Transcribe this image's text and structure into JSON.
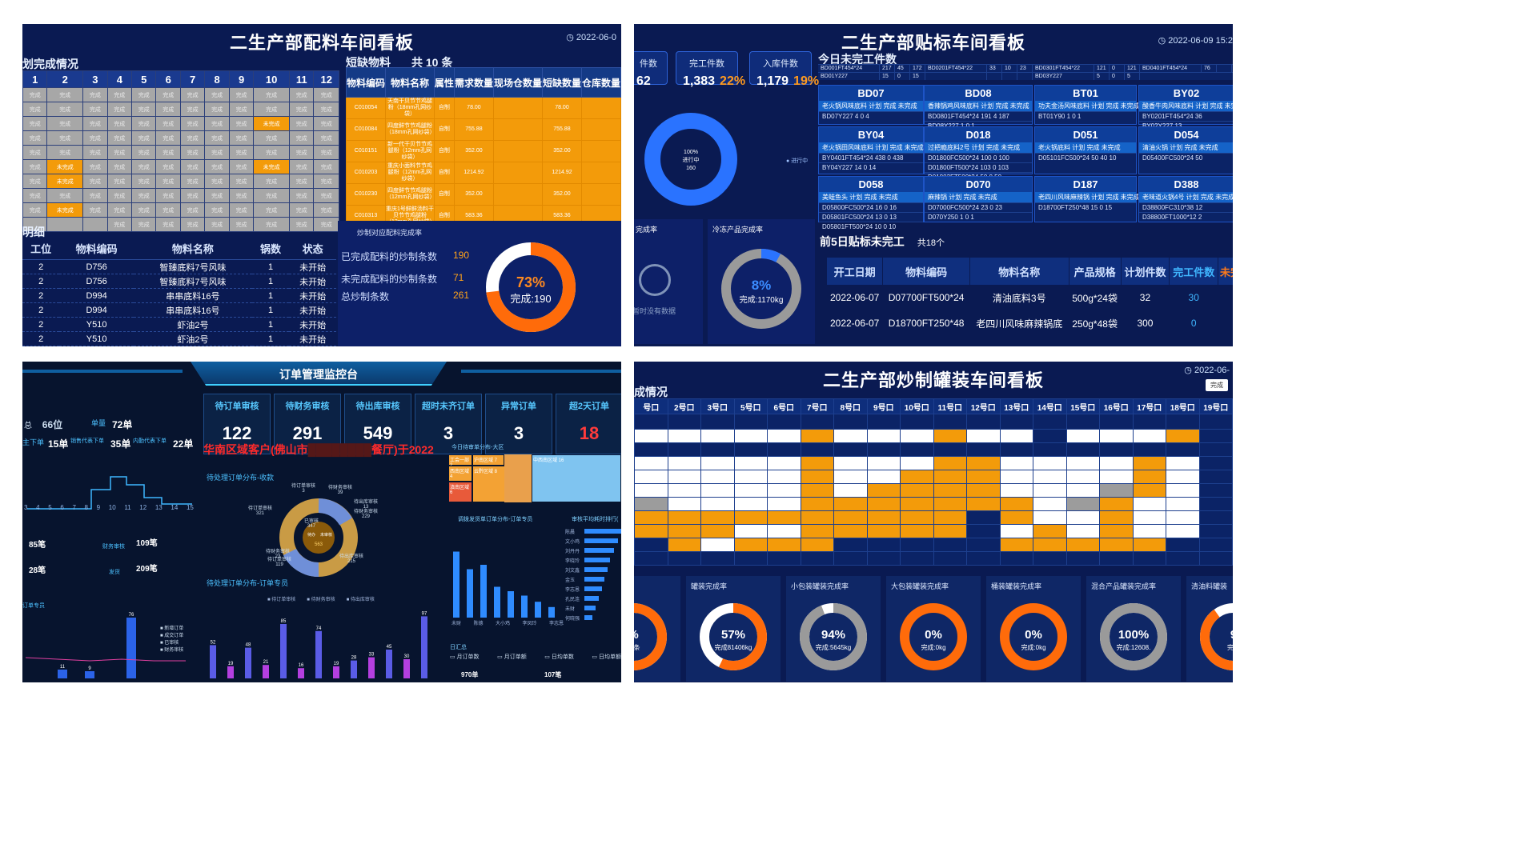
{
  "p1": {
    "title": "二生产部配料车间看板",
    "date": "2022-06-0",
    "plan_title": "划完成情况",
    "plan_cols": [
      "1",
      "2",
      "3",
      "4",
      "5",
      "6",
      "7",
      "8",
      "9",
      "10",
      "11",
      "12"
    ],
    "cell_text": "完成",
    "cell_text_on": "未完成",
    "short_title": "短缺物料",
    "short_count": "共 10 条",
    "short_cols": [
      "物料编码",
      "物料名称",
      "属性",
      "需求数量",
      "现场仓数量",
      "短缺数量",
      "仓库数量"
    ],
    "short_rows": [
      [
        "C010054",
        "天南干贝节节鸡腿粉（18mm孔网纱袋）",
        "自制",
        "78.00",
        "",
        "78.00",
        ""
      ],
      [
        "C010084",
        "四度鲜节节鸡腿粉（18mm孔网纱袋）",
        "自制",
        "755.88",
        "",
        "755.88",
        ""
      ],
      [
        "C010151",
        "新一代干贝节节鸡腿粉（12mm孔网纱袋）",
        "自制",
        "352.00",
        "",
        "352.00",
        ""
      ],
      [
        "C010203",
        "重庆小面料节节鸡腿粉（12mm孔网纱袋）",
        "自制",
        "1214.92",
        "",
        "1214.92",
        ""
      ],
      [
        "C010230",
        "四度鲜节节鸡腿粉（12mm孔网纱袋）",
        "自制",
        "352.00",
        "",
        "352.00",
        ""
      ],
      [
        "C010313",
        "重庆1号鲜鲜汤料干贝节节鸡腿粉（12mm孔网纱袋）",
        "自制",
        "583.36",
        "",
        "583.36",
        ""
      ],
      [
        "C010382",
        "重庆1号鲜鲜汤料干贝节节鸡腿粉（12mm孔网纱袋）",
        "自制",
        "292.20",
        "",
        "292.20",
        ""
      ]
    ],
    "detail_title": "明细",
    "detail_cols": [
      "工位",
      "物料编码",
      "物料名称",
      "锅数",
      "状态"
    ],
    "detail_rows": [
      [
        "2",
        "D756",
        "智臻底料7号风味",
        "1",
        "未开始"
      ],
      [
        "2",
        "D756",
        "智臻底料7号风味",
        "1",
        "未开始"
      ],
      [
        "2",
        "D994",
        "串串底料16号",
        "1",
        "未开始"
      ],
      [
        "2",
        "D994",
        "串串底料16号",
        "1",
        "未开始"
      ],
      [
        "2",
        "Y510",
        "虾油2号",
        "1",
        "未开始"
      ],
      [
        "2",
        "Y510",
        "虾油2号",
        "1",
        "未开始"
      ],
      [
        "2",
        "Y510",
        "虾油2号",
        "1",
        "未开始"
      ],
      [
        "2",
        "Y510",
        "虾油2号",
        "1",
        "未开始"
      ]
    ],
    "rate_title": "炒制对应配料完成率",
    "stat1_label": "已完成配料的炒制条数",
    "stat1": "190",
    "stat2_label": "未完成配料的炒制条数",
    "stat2": "71",
    "stat3_label": "总炒制条数",
    "stat3": "261",
    "ring_pct": "73%",
    "ring_label": "完成:190",
    "ring_value": 0.73
  },
  "p2": {
    "title": "二生产部贴标车间看板",
    "date": "2022-06-09 15:2",
    "k0_label": "件数",
    "k0_value": "62",
    "k1_label": "完工件数",
    "k1_value": "1,383",
    "k1_pct": "22%",
    "k2_label": "入库件数",
    "k2_value": "1,179",
    "k2_pct": "19%",
    "donut_line1": "100%",
    "donut_line2": "进行中",
    "donut_line3": "160",
    "legend": "进行中",
    "unf_title": "今日未完工件数",
    "top_row": [
      [
        "BD001FT454*24",
        "217",
        "45",
        "172"
      ],
      [
        "BD0201FT454*22",
        "33",
        "10",
        "23"
      ],
      [
        "BD0301FT454*22",
        "121",
        "0",
        "121"
      ],
      [
        "BD0401FT454*24",
        "76",
        ""
      ]
    ],
    "top_row2": [
      [
        "BD01Y227",
        "15",
        "0",
        "15"
      ],
      [
        "",
        "",
        "",
        ""
      ],
      [
        "BD03Y227",
        "5",
        "0",
        "5"
      ]
    ],
    "blocks": [
      {
        "name": "BD07",
        "h": "老火锅风味底料",
        "r1": "BD07Y227  4  0  4"
      },
      {
        "name": "BD08",
        "h": "香辣锅鸡风味底料",
        "r1": "BD0801FT454*24 191 4 187",
        "r2": "BD08Y227  1  0  1"
      },
      {
        "name": "BT01",
        "h": "功夫金汤风味底料",
        "r1": "BT01Y90  1  0  1"
      },
      {
        "name": "BY02",
        "h": "酸香牛肉风味底料",
        "r1": "BY0201FT454*24  36",
        "r2": "BY02Y227  13"
      },
      {
        "name": "BY04",
        "h": "老火锅田风味底料",
        "r1": "BY0401FT454*24 438 0 438",
        "r2": "BY04Y227  14  0  14"
      },
      {
        "name": "D018",
        "h": "过把瘾底料2号",
        "r1": "D01800FC500*24 100 0 100",
        "r2": "D01800FT500*24 103 0 103",
        "r3": "D01803FT500*24 50 0 50"
      },
      {
        "name": "D051",
        "h": "老火锅底料",
        "r1": "D05101FC500*24 50 40 10"
      },
      {
        "name": "D054",
        "h": "清油火锅",
        "r1": "D05400FC500*24  50"
      },
      {
        "name": "D058",
        "h": "美蛙鱼头",
        "r1": "D05800FC500*24 16 0 16",
        "r2": "D05801FC500*24 13 0 13",
        "r3": "D05801FT500*24 10 0 10"
      },
      {
        "name": "D070",
        "h": "麻辣锅",
        "r1": "D07000FC500*24 23 0 23",
        "r2": "D070Y250  1  0  1"
      },
      {
        "name": "D187",
        "h": "老四川风味麻辣锅",
        "r1": "D18700FT250*48 15 0 15"
      },
      {
        "name": "D388",
        "h": "老味道火锅4号",
        "r1": "D38800FC310*38  12",
        "r2": "D38800FT1000*12  2"
      }
    ],
    "g1": "完成率",
    "g2": "冷冻产品完成率",
    "nodata": "暂时没有数据",
    "g2_pct": "8%",
    "g2_label": "完成:1170kg",
    "g2_value": 0.08,
    "wt_title": "前5日贴标未完工",
    "wt_count": "共18个",
    "wt_cols": [
      "开工日期",
      "物料编码",
      "物料名称",
      "产品规格",
      "计划件数",
      "完工件数",
      "未完"
    ],
    "wt_rows": [
      [
        "2022-06-07",
        "D07700FT500*24",
        "清油底料3号",
        "500g*24袋",
        "32",
        "30",
        ""
      ],
      [
        "2022-06-07",
        "D18700FT250*48",
        "老四川风味麻辣锅底",
        "250g*48袋",
        "300",
        "0",
        ""
      ]
    ]
  },
  "p3": {
    "title": "订单管理监控台",
    "kpis": [
      {
        "label": "待订单审核",
        "value": "122"
      },
      {
        "label": "待财务审核",
        "value": "291"
      },
      {
        "label": "待出库审核",
        "value": "549"
      },
      {
        "label": "超时未齐订单",
        "value": "3"
      },
      {
        "label": "异常订单",
        "value": "3"
      },
      {
        "label": "超2天订单",
        "value": "18"
      }
    ],
    "left_a": "66位",
    "left_a_l": "单量",
    "left_b": "72单",
    "left_c": "15单",
    "left_c_l": "主下单",
    "left_d": "35单",
    "left_d_l": "销售代表下单",
    "left_e": "22单",
    "left_e_l": "内勤代表下单",
    "ticker": "华南区域客户(佛山市",
    "ticker2": "餐厅)于2022",
    "line_xaxis": [
      "3",
      "4",
      "5",
      "6",
      "7",
      "8",
      "9",
      "10",
      "11",
      "12",
      "13",
      "14",
      "15"
    ],
    "s2a": "85笔",
    "s2b": "109笔",
    "s2b_l": "财务审核",
    "s2c": "28笔",
    "s2d": "209笔",
    "s2d_l": "发货",
    "pie_title": "待处理订单分布-收款",
    "pie_labels": [
      {
        "t": "待订单审核",
        "v": "3"
      },
      {
        "t": "待财务审核",
        "v": "39"
      },
      {
        "t": "待出库审核",
        "v": "13"
      },
      {
        "t": "待财务审核",
        "v": "229"
      },
      {
        "t": "待订单审核",
        "v": "321"
      },
      {
        "t": "已审核",
        "v": "347"
      },
      {
        "t": "待财务审核",
        "v": "23"
      },
      {
        "t": "待订单审核",
        "v": "119"
      },
      {
        "t": "待出库审核",
        "v": "215"
      }
    ],
    "pie_center1": "待办",
    "pie_center2": "未审核",
    "pie_center3": "563",
    "bar_title": "待处理订单分布-订单专员",
    "bar_legend": [
      "待订单审核",
      "待财务审核",
      "待出库审核"
    ],
    "bars": [
      52,
      19,
      48,
      21,
      85,
      16,
      74,
      19,
      28,
      33,
      45,
      30,
      97
    ],
    "bars_hi": [
      "52",
      "19",
      "48",
      "21",
      "85",
      "16",
      "74",
      "19",
      "28",
      "33",
      "45",
      "30",
      "97"
    ],
    "tree_title": "今日待审单分布-大区",
    "tree": [
      {
        "t": "工会一部 2",
        "c": "#f3a234"
      },
      {
        "t": "沪南区域 7",
        "c": "#f3a234"
      },
      {
        "t": "中西南区域 16",
        "c": "#7fc4f0"
      },
      {
        "t": "西南区域 4",
        "c": "#f3a234"
      },
      {
        "t": "滇南区域 6",
        "c": "#e85a3a"
      },
      {
        "t": "云黔区域 8",
        "c": "#f3a234"
      }
    ],
    "vbar_title": "调拨发货单订单分布-订单专员",
    "vbars": [
      0.75,
      0.55,
      0.6,
      0.35,
      0.3,
      0.25,
      0.18,
      0.12
    ],
    "vbar_x": [
      "未财",
      "陈德",
      "大小鸡",
      "李凤玲",
      "李志恩"
    ],
    "hbar_title": "审核平均耗时排行(",
    "hbar_names": [
      "陈晨",
      "文小鸡",
      "刘丹丹",
      "李晓玲",
      "刘文鑫",
      "金玉",
      "李志恩",
      "孔民连",
      "未财",
      "何晓强"
    ],
    "hbar_vals": [
      1,
      0.92,
      0.8,
      0.7,
      0.62,
      0.55,
      0.48,
      0.4,
      0.3,
      0.22
    ],
    "day_title": "日汇总",
    "day_items": [
      "月订单数",
      "月订单额",
      "日均单数",
      "日均单额"
    ],
    "day_a": "970单",
    "day_b": "107笔",
    "bot_title": "订单专员",
    "bot_legend": [
      "新增订单",
      "成交订单",
      "已审核",
      "财务审核"
    ],
    "bot_bars": [
      11,
      9,
      76
    ]
  },
  "p4": {
    "title": "二生产部炒制罐装车间看板",
    "date": "2022-06-",
    "btn": "完成",
    "sec": "成情况",
    "cols": [
      "号口",
      "2号口",
      "3号口",
      "5号口",
      "6号口",
      "7号口",
      "8号口",
      "9号口",
      "10号口",
      "11号口",
      "12号口",
      "13号口",
      "14号口",
      "15号口",
      "16号口",
      "17号口",
      "18号口",
      "19号口"
    ],
    "gauges": [
      {
        "t": "",
        "p": "%",
        "s": "35条",
        "v": 0.62
      },
      {
        "t": "罐装完成率",
        "p": "57%",
        "s": "完成81406kg",
        "v": 0.57
      },
      {
        "t": "小包装罐装完成率",
        "p": "94%",
        "s": "完成:5645kg",
        "v": 0.94
      },
      {
        "t": "大包装罐装完成率",
        "p": "0%",
        "s": "完成:0kg",
        "v": 0
      },
      {
        "t": "桶装罐装完成率",
        "p": "0%",
        "s": "完成:0kg",
        "v": 0
      },
      {
        "t": "混合产品罐装完成率",
        "p": "100%",
        "s": "完成:12608.",
        "v": 1
      },
      {
        "t": "清油料罐装",
        "p": "9",
        "s": "完成",
        "v": 0.9
      }
    ]
  }
}
